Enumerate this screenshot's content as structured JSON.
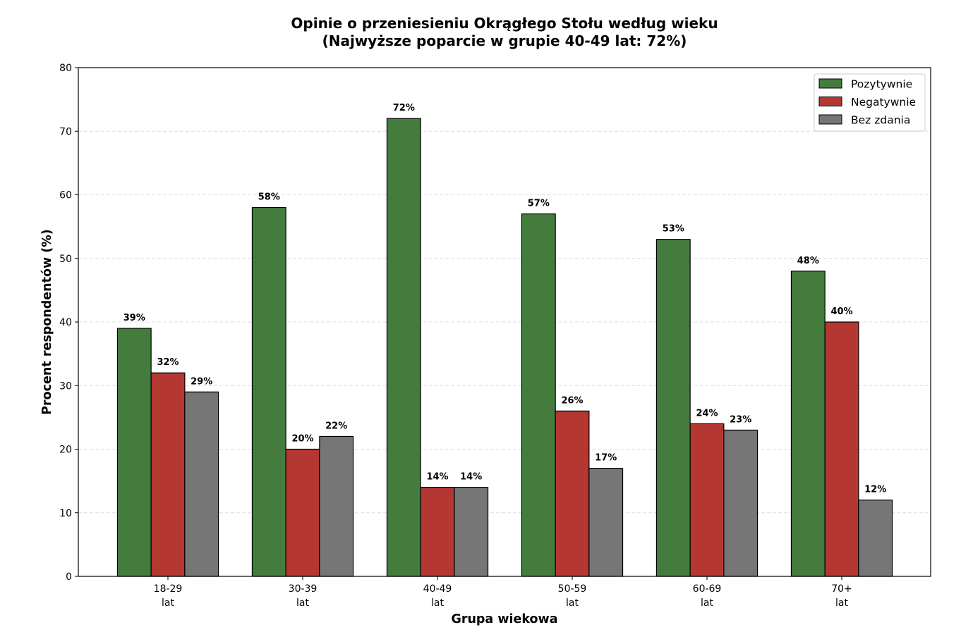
{
  "chart_data": {
    "type": "bar",
    "title": "Opinie o przeniesieniu Okrągłego Stołu według wieku",
    "subtitle": "(Najwyższe poparcie w grupie 40-49 lat: 72%)",
    "xlabel": "Grupa wiekowa",
    "ylabel": "Procent respondentów (%)",
    "ylim": [
      0,
      80
    ],
    "yticks": [
      0,
      10,
      20,
      30,
      40,
      50,
      60,
      70,
      80
    ],
    "grid": "horizontal dashed",
    "legend_position": "top-right",
    "categories": [
      {
        "line1": "18-29",
        "line2": "lat"
      },
      {
        "line1": "30-39",
        "line2": "lat"
      },
      {
        "line1": "40-49",
        "line2": "lat"
      },
      {
        "line1": "50-59",
        "line2": "lat"
      },
      {
        "line1": "60-69",
        "line2": "lat"
      },
      {
        "line1": "70+",
        "line2": "lat"
      }
    ],
    "series": [
      {
        "name": "Pozytywnie",
        "color": "#437c3c",
        "values": [
          39,
          58,
          72,
          57,
          53,
          48
        ]
      },
      {
        "name": "Negatywnie",
        "color": "#b53732",
        "values": [
          32,
          20,
          14,
          26,
          24,
          40
        ]
      },
      {
        "name": "Bez zdania",
        "color": "#767676",
        "values": [
          29,
          22,
          14,
          17,
          23,
          12
        ]
      }
    ],
    "value_suffix": "%"
  }
}
